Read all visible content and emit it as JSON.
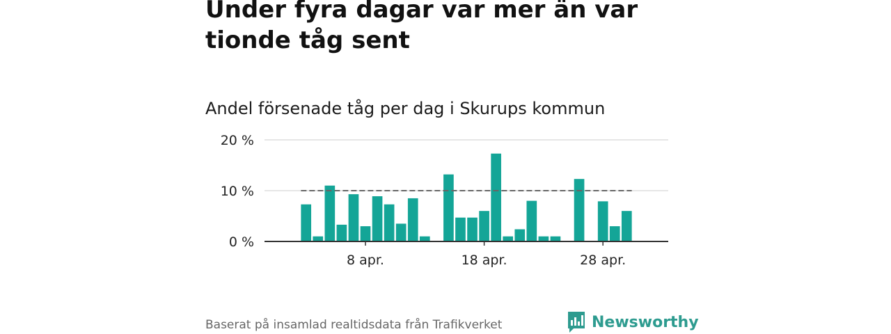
{
  "title": "Under fyra dagar var mer än var tionde tåg sent",
  "subtitle": "Andel försenade tåg per dag i Skurups kommun",
  "source": "Baserat på insamlad realtidsdata från Trafikverket",
  "logo": {
    "text": "Newsworthy",
    "icon": "newsworthy-chart-bubble-icon"
  },
  "colors": {
    "bar": "#14a597",
    "reference": "#666666",
    "grid": "#dddddd",
    "axis": "#333333",
    "logo": "#2d9b8f"
  },
  "chart_data": {
    "type": "bar",
    "title": "Andel försenade tåg per dag i Skurups kommun",
    "x": [
      3,
      4,
      5,
      6,
      7,
      8,
      9,
      10,
      11,
      12,
      13,
      14,
      15,
      16,
      17,
      18,
      19,
      20,
      21,
      22,
      23,
      24,
      25,
      26,
      27,
      28,
      29,
      30
    ],
    "x_unit": "day of April",
    "values": [
      7.3,
      1.0,
      11.0,
      3.3,
      9.3,
      3.0,
      8.9,
      7.3,
      3.5,
      8.5,
      1.0,
      null,
      13.2,
      4.7,
      4.7,
      6.0,
      17.3,
      1.0,
      2.4,
      8.0,
      1.0,
      1.0,
      null,
      12.3,
      null,
      7.9,
      3.0,
      6.0
    ],
    "reference_line": 10,
    "xticks": [
      {
        "x": 8,
        "label": "8 apr."
      },
      {
        "x": 18,
        "label": "18 apr."
      },
      {
        "x": 28,
        "label": "28 apr."
      }
    ],
    "yticks": [
      {
        "y": 0,
        "label": "0 %"
      },
      {
        "y": 10,
        "label": "10 %"
      },
      {
        "y": 20,
        "label": "20 %"
      }
    ],
    "ylim": [
      0,
      20
    ],
    "xlim": [
      -0.5,
      33.5
    ],
    "grid": true,
    "legend": "none"
  }
}
